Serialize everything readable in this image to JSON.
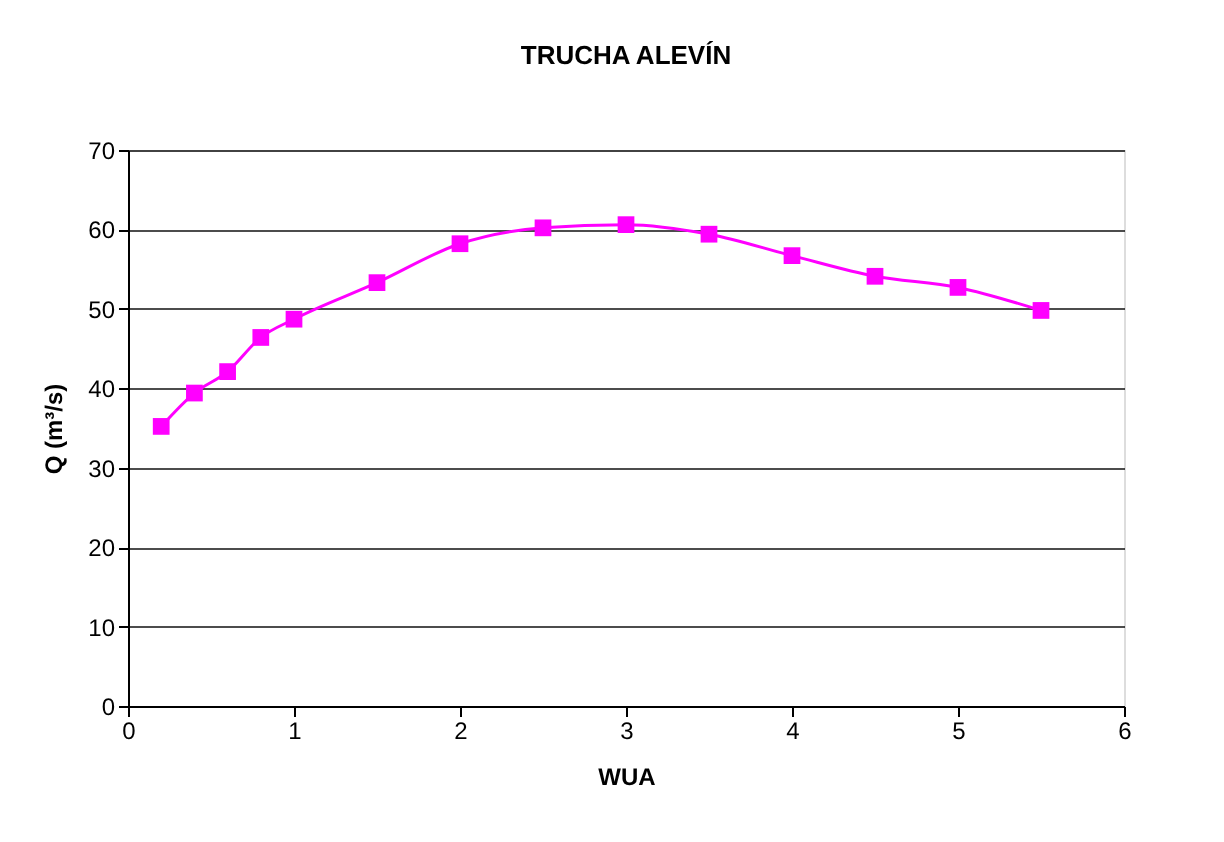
{
  "chart_data": {
    "type": "line",
    "title": "TRUCHA ALEVÍN",
    "xlabel": "WUA",
    "ylabel": "Q (m³/s)",
    "x": [
      0.2,
      0.4,
      0.6,
      0.8,
      1,
      1.5,
      2,
      2.5,
      3,
      3.5,
      4,
      4.5,
      5,
      5.5
    ],
    "series": [
      {
        "color": "#ff00ff",
        "values": [
          35.2,
          39.4,
          42.1,
          46.4,
          48.7,
          53.3,
          58.2,
          60.2,
          60.6,
          59.4,
          56.7,
          54.1,
          52.7,
          49.8
        ]
      }
    ],
    "xlim": [
      0,
      6
    ],
    "xticks": [
      0,
      1,
      2,
      3,
      4,
      5,
      6
    ],
    "ylim": [
      0,
      70
    ],
    "yticks": [
      0,
      10,
      20,
      30,
      40,
      50,
      60,
      70
    ],
    "grid": "y",
    "marker": "square",
    "line_style": "solid"
  }
}
